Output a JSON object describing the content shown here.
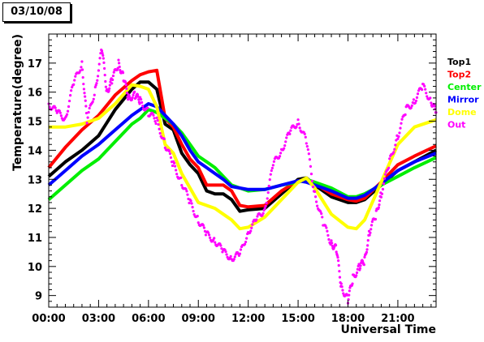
{
  "date_label": "03/10/08",
  "chart_data": {
    "type": "line",
    "title": "03/10/08",
    "xlabel": "Universal Time",
    "ylabel": "Temperature(degree)",
    "x_unit": "hours UT",
    "xlim": [
      0,
      23.3
    ],
    "ylim": [
      8.6,
      18.0
    ],
    "x_ticks": [
      "00:00",
      "03:00",
      "06:00",
      "09:00",
      "12:00",
      "15:00",
      "18:00",
      "21:00"
    ],
    "y_ticks": [
      "9",
      "10",
      "11",
      "12",
      "13",
      "14",
      "15",
      "16",
      "17"
    ],
    "legend_position": "right",
    "grid": false,
    "series": [
      {
        "name": "Top1",
        "color": "#000000",
        "style": "line",
        "x": [
          0,
          1,
          2,
          3,
          4,
          5,
          5.5,
          6,
          6.5,
          7,
          7.5,
          8,
          8.5,
          9,
          9.5,
          10,
          10.5,
          11,
          11.5,
          12,
          13,
          14,
          15,
          15.5,
          16,
          17,
          18,
          18.5,
          19,
          20,
          21,
          22,
          23.3
        ],
        "y": [
          13.1,
          13.6,
          14.0,
          14.5,
          15.4,
          16.1,
          16.35,
          16.35,
          16.1,
          14.9,
          14.7,
          13.9,
          13.5,
          13.2,
          12.6,
          12.5,
          12.5,
          12.3,
          11.9,
          11.95,
          12.0,
          12.5,
          13.0,
          13.05,
          12.8,
          12.4,
          12.2,
          12.2,
          12.3,
          12.8,
          13.3,
          13.6,
          14.0
        ]
      },
      {
        "name": "Top2",
        "color": "#ff0000",
        "style": "line",
        "x": [
          0,
          1,
          2,
          3,
          4,
          5,
          5.5,
          6,
          6.5,
          7,
          7.5,
          8,
          8.5,
          9,
          9.5,
          10,
          10.5,
          11,
          11.5,
          12,
          13,
          14,
          15,
          15.5,
          16,
          17,
          18,
          18.5,
          19,
          20,
          21,
          22,
          23.3
        ],
        "y": [
          13.4,
          14.1,
          14.7,
          15.2,
          15.9,
          16.4,
          16.6,
          16.7,
          16.75,
          15.1,
          14.8,
          14.2,
          13.7,
          13.4,
          12.8,
          12.8,
          12.8,
          12.6,
          12.1,
          12.05,
          12.1,
          12.6,
          12.95,
          12.95,
          12.85,
          12.5,
          12.3,
          12.25,
          12.35,
          12.9,
          13.5,
          13.8,
          14.15
        ]
      },
      {
        "name": "Center",
        "color": "#00ee00",
        "style": "line",
        "x": [
          0,
          1,
          2,
          3,
          4,
          5,
          5.5,
          6,
          6.5,
          7,
          7.5,
          8,
          8.5,
          9,
          9.5,
          10,
          10.5,
          11,
          11.5,
          12,
          13,
          14,
          15,
          15.5,
          16,
          17,
          18,
          18.5,
          19,
          20,
          21,
          22,
          23.3
        ],
        "y": [
          12.3,
          12.8,
          13.3,
          13.7,
          14.3,
          14.9,
          15.1,
          15.4,
          15.3,
          15.1,
          14.9,
          14.6,
          14.2,
          13.8,
          13.6,
          13.4,
          13.1,
          12.8,
          12.7,
          12.6,
          12.65,
          12.8,
          12.9,
          13.0,
          12.9,
          12.7,
          12.4,
          12.4,
          12.5,
          12.8,
          13.1,
          13.4,
          13.75
        ]
      },
      {
        "name": "Mirror",
        "color": "#0000ff",
        "style": "line",
        "x": [
          0,
          1,
          2,
          3,
          4,
          5,
          5.5,
          6,
          6.5,
          7,
          7.5,
          8,
          8.5,
          9,
          9.5,
          10,
          10.5,
          11,
          11.5,
          12,
          13,
          14,
          15,
          15.5,
          16,
          17,
          18,
          18.5,
          19,
          20,
          21,
          22,
          23.3
        ],
        "y": [
          12.8,
          13.3,
          13.8,
          14.2,
          14.7,
          15.2,
          15.4,
          15.6,
          15.5,
          15.2,
          14.9,
          14.5,
          14.0,
          13.6,
          13.4,
          13.2,
          13.0,
          12.75,
          12.7,
          12.65,
          12.65,
          12.8,
          12.95,
          12.9,
          12.8,
          12.6,
          12.35,
          12.35,
          12.45,
          12.85,
          13.3,
          13.6,
          13.9
        ]
      },
      {
        "name": "Dome",
        "color": "#ffff00",
        "style": "line",
        "x": [
          0,
          1,
          2,
          3,
          4,
          5,
          5.5,
          6,
          6.5,
          7,
          7.5,
          8,
          8.5,
          9,
          9.5,
          10,
          10.5,
          11,
          11.5,
          12,
          13,
          14,
          15,
          15.5,
          16,
          17,
          18,
          18.5,
          19,
          20,
          21,
          22,
          23.3
        ],
        "y": [
          14.8,
          14.8,
          14.9,
          15.1,
          15.6,
          16.25,
          16.2,
          16.1,
          15.5,
          14.2,
          13.9,
          13.2,
          12.7,
          12.2,
          12.1,
          12.0,
          11.8,
          11.6,
          11.3,
          11.35,
          11.7,
          12.3,
          12.9,
          13.05,
          12.7,
          11.8,
          11.35,
          11.3,
          11.6,
          12.9,
          14.2,
          14.8,
          15.05
        ]
      },
      {
        "name": "Out",
        "color": "#ff00ff",
        "style": "markers",
        "x": [
          0,
          0.5,
          1,
          1.5,
          2,
          2.3,
          2.8,
          3.2,
          3.5,
          3.8,
          4.2,
          4.5,
          4.8,
          5.2,
          5.5,
          6,
          6.5,
          7,
          7.5,
          8,
          8.5,
          9,
          9.5,
          10,
          10.5,
          11,
          11.5,
          12,
          12.5,
          13,
          13.5,
          14,
          14.5,
          15,
          15.5,
          16,
          16.5,
          17,
          17.3,
          17.6,
          18,
          18.3,
          18.7,
          19,
          19.3,
          19.7,
          20,
          20.5,
          21,
          21.5,
          22,
          22.5,
          23,
          23.3
        ],
        "y": [
          15.6,
          15.3,
          15.1,
          16.3,
          17.0,
          15.0,
          16.1,
          17.5,
          16.0,
          16.4,
          17.0,
          16.5,
          15.8,
          15.9,
          15.7,
          15.3,
          15.0,
          14.2,
          13.5,
          12.9,
          12.2,
          11.6,
          11.1,
          10.9,
          10.5,
          10.3,
          10.4,
          11.2,
          11.6,
          12.0,
          13.5,
          14.0,
          14.6,
          15.0,
          14.3,
          12.5,
          11.5,
          10.8,
          10.6,
          9.3,
          8.85,
          9.6,
          10.0,
          10.2,
          11.2,
          11.8,
          12.5,
          13.6,
          14.5,
          15.4,
          15.7,
          16.2,
          15.7,
          15.3
        ]
      }
    ]
  }
}
